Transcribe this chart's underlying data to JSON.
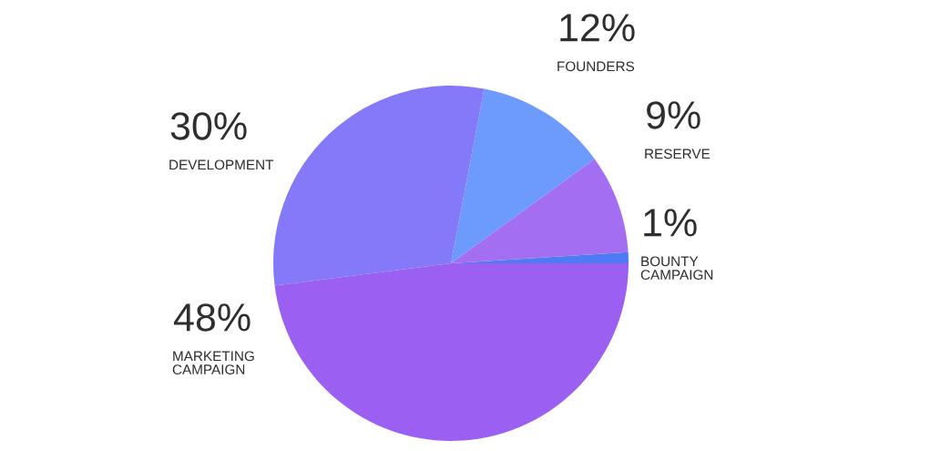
{
  "chart_data": {
    "type": "pie",
    "categories": [
      "BOUNTY\nCAMPAIGN",
      "RESERVE",
      "FOUNDERS",
      "DEVELOPMENT",
      "MARKETING\nCAMPAIGN"
    ],
    "values": [
      1,
      9,
      12,
      30,
      48
    ],
    "value_labels": [
      "1%",
      "9%",
      "12%",
      "30%",
      "48%"
    ],
    "colors": [
      "#4c7cf5",
      "#a46ef3",
      "#6d9bfd",
      "#8479f8",
      "#9b60f1"
    ]
  }
}
